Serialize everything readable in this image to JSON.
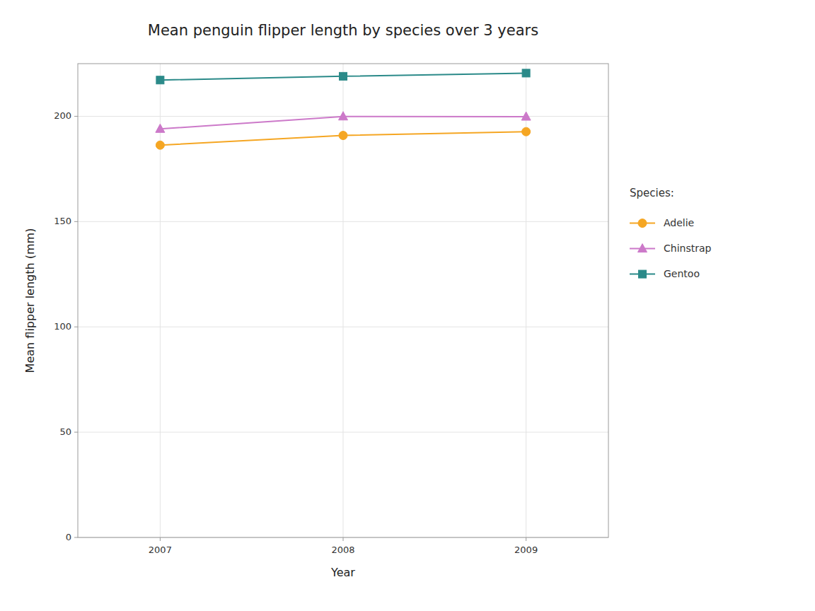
{
  "chart_data": {
    "type": "line",
    "title": "Mean penguin flipper length by species over 3 years",
    "x_label": "Year",
    "y_label": "Mean flipper length (mm)",
    "x": [
      2007,
      2008,
      2009
    ],
    "series": [
      {
        "name": "Adelie",
        "color": "#F5A623",
        "marker": "circle",
        "values": [
          186.3,
          190.9,
          192.7
        ]
      },
      {
        "name": "Chinstrap",
        "color": "#CC79C9",
        "marker": "triangle",
        "values": [
          194.0,
          199.9,
          199.8
        ]
      },
      {
        "name": "Gentoo",
        "color": "#2B8A89",
        "marker": "square",
        "values": [
          217.2,
          219.0,
          220.5
        ]
      }
    ],
    "xlim": [
      2006.55,
      2009.45
    ],
    "xticks": [
      2007,
      2008,
      2009
    ],
    "ylim": [
      0,
      225
    ],
    "yticks": [
      0,
      50,
      100,
      150,
      200
    ],
    "grid": true,
    "legend": "right",
    "legend_title": "Species:"
  }
}
